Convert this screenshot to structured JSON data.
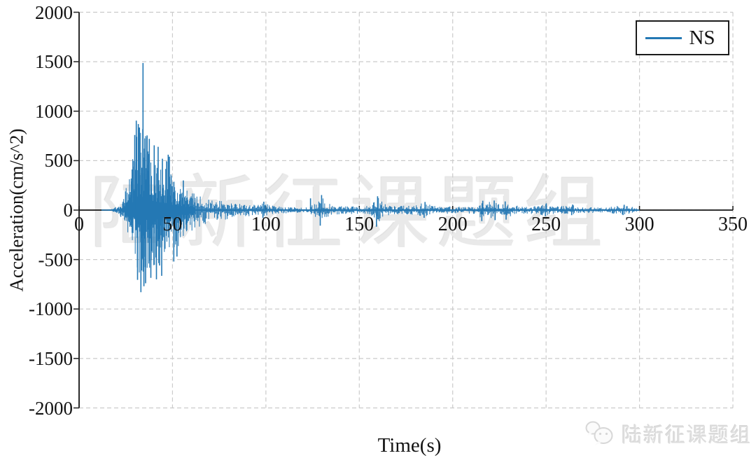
{
  "page": {
    "background": "#ffffff"
  },
  "chart_data": {
    "type": "line",
    "title": "",
    "xlabel": "Time(s)",
    "ylabel": "Acceleration(cm/s^2)",
    "xlim": [
      0,
      350
    ],
    "ylim": [
      -2000,
      2000
    ],
    "xticks": [
      0,
      50,
      100,
      150,
      200,
      250,
      300,
      350
    ],
    "yticks": [
      2000,
      1500,
      1000,
      500,
      0,
      -500,
      -1000,
      -1500,
      -2000
    ],
    "grid": {
      "style": "dashed",
      "color": "#cbcbcb"
    },
    "axis_color": "#1a1a1a",
    "legend": {
      "position": "top-right",
      "entries": [
        "NS"
      ]
    },
    "series": [
      {
        "name": "NS",
        "color": "#2478b4",
        "record_start_s": 12,
        "record_end_s": 300,
        "peak_value_cm_s2": 1487,
        "peak_time_s": 34,
        "min_value_cm_s2": -830
      }
    ],
    "envelope_t_pos_neg": [
      [
        0,
        0,
        0
      ],
      [
        12,
        1,
        1
      ],
      [
        15,
        6,
        6
      ],
      [
        18,
        15,
        14
      ],
      [
        20,
        35,
        30
      ],
      [
        22,
        70,
        60
      ],
      [
        24,
        140,
        120
      ],
      [
        26,
        280,
        240
      ],
      [
        28,
        450,
        380
      ],
      [
        29,
        620,
        440
      ],
      [
        30,
        800,
        580
      ],
      [
        31,
        880,
        660
      ],
      [
        32,
        840,
        730
      ],
      [
        33,
        810,
        800
      ],
      [
        34,
        900,
        760
      ],
      [
        35,
        780,
        700
      ],
      [
        36,
        750,
        660
      ],
      [
        37,
        700,
        620
      ],
      [
        38,
        610,
        650
      ],
      [
        39,
        580,
        610
      ],
      [
        40,
        620,
        600
      ],
      [
        41,
        560,
        690
      ],
      [
        42,
        610,
        570
      ],
      [
        43,
        490,
        530
      ],
      [
        44,
        430,
        610
      ],
      [
        45,
        390,
        490
      ],
      [
        46,
        430,
        430
      ],
      [
        47,
        530,
        410
      ],
      [
        48,
        545,
        390
      ],
      [
        49,
        390,
        430
      ],
      [
        50,
        330,
        470
      ],
      [
        51,
        300,
        490
      ],
      [
        52,
        285,
        430
      ],
      [
        53,
        265,
        385
      ],
      [
        54,
        245,
        335
      ],
      [
        55,
        235,
        305
      ],
      [
        57,
        205,
        265
      ],
      [
        60,
        185,
        225
      ],
      [
        63,
        155,
        185
      ],
      [
        66,
        135,
        155
      ],
      [
        70,
        112,
        132
      ],
      [
        75,
        96,
        108
      ],
      [
        80,
        86,
        92
      ],
      [
        85,
        66,
        72
      ],
      [
        90,
        56,
        62
      ],
      [
        95,
        52,
        55
      ],
      [
        97,
        62,
        60
      ],
      [
        99,
        72,
        66
      ],
      [
        101,
        58,
        52
      ],
      [
        104,
        44,
        44
      ],
      [
        108,
        36,
        36
      ],
      [
        112,
        32,
        32
      ],
      [
        116,
        30,
        30
      ],
      [
        120,
        30,
        32
      ],
      [
        124,
        40,
        42
      ],
      [
        127,
        75,
        75
      ],
      [
        129,
        130,
        135
      ],
      [
        130,
        150,
        130
      ],
      [
        131,
        115,
        135
      ],
      [
        133,
        75,
        78
      ],
      [
        136,
        52,
        52
      ],
      [
        140,
        46,
        46
      ],
      [
        144,
        42,
        43
      ],
      [
        148,
        38,
        38
      ],
      [
        152,
        36,
        36
      ],
      [
        155,
        48,
        46
      ],
      [
        157,
        80,
        75
      ],
      [
        159,
        120,
        125
      ],
      [
        160,
        135,
        120
      ],
      [
        161,
        110,
        130
      ],
      [
        163,
        70,
        78
      ],
      [
        166,
        48,
        48
      ],
      [
        170,
        42,
        42
      ],
      [
        175,
        46,
        44
      ],
      [
        180,
        52,
        50
      ],
      [
        183,
        68,
        60
      ],
      [
        185,
        78,
        72
      ],
      [
        187,
        60,
        58
      ],
      [
        190,
        46,
        46
      ],
      [
        195,
        40,
        40
      ],
      [
        200,
        36,
        36
      ],
      [
        205,
        34,
        34
      ],
      [
        210,
        36,
        36
      ],
      [
        213,
        52,
        50
      ],
      [
        215,
        80,
        85
      ],
      [
        216,
        88,
        95
      ],
      [
        218,
        92,
        88
      ],
      [
        220,
        80,
        85
      ],
      [
        222,
        88,
        92
      ],
      [
        224,
        70,
        72
      ],
      [
        226,
        72,
        76
      ],
      [
        228,
        80,
        82
      ],
      [
        230,
        66,
        70
      ],
      [
        233,
        50,
        50
      ],
      [
        236,
        40,
        40
      ],
      [
        240,
        36,
        36
      ],
      [
        244,
        44,
        42
      ],
      [
        247,
        60,
        55
      ],
      [
        250,
        64,
        58
      ],
      [
        252,
        52,
        50
      ],
      [
        255,
        44,
        42
      ],
      [
        258,
        40,
        38
      ],
      [
        261,
        46,
        44
      ],
      [
        264,
        50,
        46
      ],
      [
        267,
        42,
        40
      ],
      [
        270,
        36,
        34
      ],
      [
        274,
        30,
        29
      ],
      [
        278,
        27,
        26
      ],
      [
        282,
        26,
        26
      ],
      [
        286,
        38,
        36
      ],
      [
        289,
        46,
        42
      ],
      [
        292,
        50,
        46
      ],
      [
        295,
        42,
        38
      ],
      [
        297,
        28,
        26
      ],
      [
        299,
        14,
        13
      ],
      [
        300,
        4,
        4
      ]
    ],
    "spikes_t_v": [
      [
        34.2,
        1487
      ],
      [
        30.6,
        905
      ],
      [
        31.7,
        870
      ],
      [
        32.3,
        835
      ],
      [
        29.8,
        760
      ],
      [
        36.4,
        755
      ],
      [
        37.6,
        720
      ],
      [
        40.2,
        655
      ],
      [
        42.3,
        640
      ],
      [
        44.6,
        520
      ],
      [
        47.7,
        560
      ],
      [
        48.3,
        540
      ],
      [
        55.8,
        300
      ],
      [
        33.1,
        -830
      ],
      [
        34.7,
        -770
      ],
      [
        35.6,
        -740
      ],
      [
        31.3,
        -705
      ],
      [
        38.4,
        -685
      ],
      [
        41.4,
        -700
      ],
      [
        44.2,
        -665
      ],
      [
        43.1,
        -560
      ],
      [
        50.7,
        -520
      ],
      [
        52.4,
        -470
      ],
      [
        98.9,
        85
      ],
      [
        98.4,
        -80
      ],
      [
        123.9,
        118
      ],
      [
        129.8,
        152
      ],
      [
        129.1,
        -158
      ],
      [
        159.8,
        140
      ],
      [
        159.2,
        -168
      ],
      [
        185.2,
        82
      ],
      [
        184.7,
        -78
      ],
      [
        216.1,
        95
      ],
      [
        215.6,
        -112
      ],
      [
        222.2,
        96
      ],
      [
        222.7,
        -102
      ],
      [
        228.1,
        88
      ],
      [
        228.6,
        -96
      ],
      [
        250.1,
        68
      ],
      [
        249.6,
        -62
      ],
      [
        264.2,
        56
      ],
      [
        263.7,
        -52
      ],
      [
        291.8,
        54
      ],
      [
        291.2,
        -50
      ]
    ]
  },
  "watermark": {
    "center_text": "陆新征课题组"
  },
  "footer": {
    "icon": "wechat-icon",
    "text": "陆新征课题组"
  }
}
